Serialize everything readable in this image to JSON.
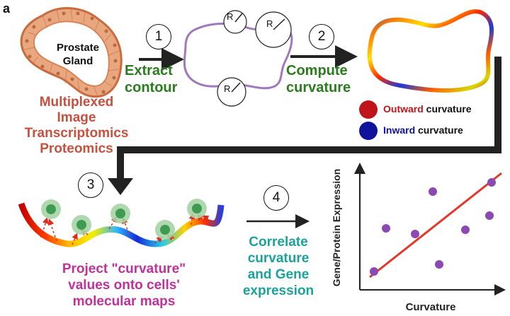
{
  "panel_label": "a",
  "gland_label": [
    "Prostate",
    "Gland"
  ],
  "modalities": [
    "Multiplexed",
    "Image",
    "Transcriptomics",
    "Proteomics"
  ],
  "steps": [
    {
      "number": "1",
      "label": [
        "Extract",
        "contour"
      ]
    },
    {
      "number": "2",
      "label": [
        "Compute",
        "curvature"
      ]
    },
    {
      "number": "3",
      "label": [
        "Project \"curvature\"",
        "values onto cells'",
        "molecular maps"
      ]
    },
    {
      "number": "4",
      "label": [
        "Correlate",
        "curvature",
        "and Gene",
        "expression"
      ]
    }
  ],
  "radius_marker": "R",
  "legend": [
    {
      "keyword": "Outward",
      "suffix": " curvature",
      "color": "#c0141b"
    },
    {
      "keyword": "Inward",
      "suffix": " curvature",
      "color": "#10129c"
    }
  ],
  "scatter": {
    "xlabel": "Curvature",
    "ylabel": "Gene/Protein Expression"
  },
  "colors": {
    "step_green": "#2a7d1c",
    "modality_red": "#c8503f",
    "project_magenta": "#c2309c",
    "correlate_teal": "#1aa39a",
    "point_purple": "#8a49b3",
    "fit_line": "#e23a2a",
    "contour": "#a078bb",
    "gland_fill": "#e9a77f"
  }
}
